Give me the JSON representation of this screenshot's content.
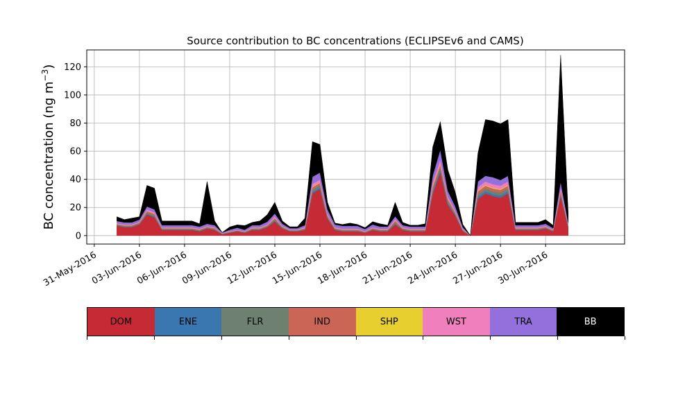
{
  "chart_data": {
    "type": "area",
    "title": "Source contribution to BC concentrations (ECLIPSEv6 and CAMS)",
    "ylabel": "BC concentration (ng m",
    "ylabel_sup": "−3",
    "ylabel_close": ")",
    "xlabel": "",
    "ylim": [
      -6,
      132
    ],
    "yticks": [
      0,
      20,
      40,
      60,
      80,
      100,
      120
    ],
    "xlim": [
      "2016-05-30T12:00",
      "2016-07-05T06:00"
    ],
    "xticks": [
      "31-May-2016",
      "03-Jun-2016",
      "06-Jun-2016",
      "09-Jun-2016",
      "12-Jun-2016",
      "15-Jun-2016",
      "18-Jun-2016",
      "21-Jun-2016",
      "24-Jun-2016",
      "27-Jun-2016",
      "30-Jun-2016"
    ],
    "grid": true,
    "stacked": true,
    "series_order": [
      "DOM",
      "ENE",
      "FLR",
      "IND",
      "SHP",
      "WST",
      "TRA",
      "BB"
    ],
    "x": [
      "2016-06-01T12:00",
      "2016-06-02T00:00",
      "2016-06-02T12:00",
      "2016-06-03T00:00",
      "2016-06-03T12:00",
      "2016-06-04T00:00",
      "2016-06-04T12:00",
      "2016-06-05T00:00",
      "2016-06-05T12:00",
      "2016-06-06T00:00",
      "2016-06-06T12:00",
      "2016-06-07T00:00",
      "2016-06-07T12:00",
      "2016-06-08T00:00",
      "2016-06-08T12:00",
      "2016-06-09T00:00",
      "2016-06-09T12:00",
      "2016-06-10T00:00",
      "2016-06-10T12:00",
      "2016-06-11T00:00",
      "2016-06-11T12:00",
      "2016-06-12T00:00",
      "2016-06-12T12:00",
      "2016-06-13T00:00",
      "2016-06-13T12:00",
      "2016-06-14T00:00",
      "2016-06-14T12:00",
      "2016-06-15T00:00",
      "2016-06-15T12:00",
      "2016-06-16T00:00",
      "2016-06-16T12:00",
      "2016-06-17T00:00",
      "2016-06-17T12:00",
      "2016-06-18T00:00",
      "2016-06-18T12:00",
      "2016-06-19T00:00",
      "2016-06-19T12:00",
      "2016-06-20T00:00",
      "2016-06-20T12:00",
      "2016-06-21T00:00",
      "2016-06-21T12:00",
      "2016-06-22T00:00",
      "2016-06-22T12:00",
      "2016-06-23T00:00",
      "2016-06-23T12:00",
      "2016-06-24T00:00",
      "2016-06-24T12:00",
      "2016-06-25T00:00",
      "2016-06-25T12:00",
      "2016-06-26T00:00",
      "2016-06-26T12:00",
      "2016-06-27T00:00",
      "2016-06-27T12:00",
      "2016-06-28T00:00",
      "2016-06-28T12:00",
      "2016-06-29T00:00",
      "2016-06-29T12:00",
      "2016-06-30T00:00",
      "2016-06-30T12:00",
      "2016-07-01T00:00",
      "2016-07-01T12:00"
    ],
    "series": [
      {
        "name": "DOM",
        "color": "#c52a35",
        "values": [
          7,
          6,
          6,
          8,
          15,
          13,
          4,
          4,
          4,
          4,
          4,
          3,
          5,
          4,
          1,
          2,
          3,
          2,
          4,
          4,
          6,
          10,
          5,
          3,
          3,
          4,
          30,
          33,
          12,
          4,
          3,
          3,
          3,
          2,
          4,
          3,
          3,
          8,
          4,
          3,
          3,
          3,
          30,
          45,
          22,
          14,
          3,
          0,
          26,
          30,
          28,
          27,
          30,
          4,
          4,
          4,
          4,
          5,
          3,
          28,
          6
        ]
      },
      {
        "name": "ENE",
        "color": "#3a76b0",
        "values": [
          0.3,
          0.3,
          0.3,
          0.3,
          0.5,
          0.5,
          0.3,
          0.3,
          0.3,
          0.3,
          0.3,
          0.3,
          0.3,
          0.3,
          0.1,
          0.2,
          0.2,
          0.2,
          0.3,
          0.3,
          0.3,
          0.5,
          0.3,
          0.3,
          0.3,
          0.3,
          1,
          1,
          0.5,
          0.3,
          0.3,
          0.3,
          0.3,
          0.2,
          0.3,
          0.3,
          0.3,
          0.5,
          0.3,
          0.3,
          0.3,
          0.3,
          1,
          1.5,
          1,
          0.5,
          0.3,
          0,
          1.5,
          1.5,
          1.5,
          1.5,
          1.5,
          0.3,
          0.3,
          0.3,
          0.3,
          0.3,
          0.3,
          1,
          0.3
        ]
      },
      {
        "name": "FLR",
        "color": "#6e8170",
        "values": [
          0.5,
          0.5,
          0.5,
          0.5,
          1,
          1,
          0.5,
          0.5,
          0.5,
          0.5,
          0.5,
          0.5,
          0.5,
          0.5,
          0.2,
          0.3,
          0.3,
          0.3,
          0.5,
          0.5,
          0.5,
          1,
          0.5,
          0.3,
          0.3,
          0.5,
          2,
          2,
          1,
          0.5,
          0.5,
          0.5,
          0.5,
          0.3,
          0.5,
          0.5,
          0.5,
          1,
          0.5,
          0.5,
          0.5,
          0.5,
          2,
          2,
          1.5,
          1,
          0.5,
          0,
          2,
          2,
          2,
          2,
          2,
          0.5,
          0.5,
          0.5,
          0.5,
          0.5,
          0.3,
          1.5,
          0.5
        ]
      },
      {
        "name": "IND",
        "color": "#cb6657",
        "values": [
          0.5,
          0.5,
          0.5,
          0.5,
          1,
          1,
          0.5,
          0.5,
          0.5,
          0.5,
          0.5,
          0.5,
          0.5,
          0.5,
          0.2,
          0.3,
          0.3,
          0.3,
          0.5,
          0.5,
          0.5,
          1,
          0.5,
          0.3,
          0.3,
          0.5,
          1.5,
          1.5,
          1,
          0.5,
          0.5,
          0.5,
          0.5,
          0.3,
          0.5,
          0.5,
          0.5,
          1,
          0.5,
          0.5,
          0.5,
          0.5,
          2,
          2,
          1.5,
          1,
          0.5,
          0,
          2,
          2,
          2,
          2,
          2,
          0.5,
          0.5,
          0.5,
          0.5,
          0.5,
          0.3,
          1.5,
          0.5
        ]
      },
      {
        "name": "SHP",
        "color": "#e6cf2f",
        "values": [
          0.1,
          0.1,
          0.1,
          0.1,
          0.2,
          0.2,
          0.1,
          0.1,
          0.1,
          0.1,
          0.1,
          0.1,
          0.1,
          0.1,
          0.05,
          0.05,
          0.05,
          0.05,
          0.1,
          0.1,
          0.1,
          0.2,
          0.1,
          0.1,
          0.1,
          0.1,
          0.3,
          0.3,
          0.2,
          0.1,
          0.1,
          0.1,
          0.1,
          0.05,
          0.1,
          0.1,
          0.1,
          0.2,
          0.1,
          0.1,
          0.1,
          0.1,
          0.5,
          0.5,
          0.3,
          0.2,
          0.1,
          0,
          0.5,
          0.5,
          0.5,
          0.5,
          0.5,
          0.1,
          0.1,
          0.1,
          0.1,
          0.1,
          0.1,
          0.3,
          0.1
        ]
      },
      {
        "name": "WST",
        "color": "#f07fbd",
        "values": [
          0.5,
          0.5,
          0.5,
          0.5,
          1,
          1,
          0.5,
          0.5,
          0.5,
          0.5,
          0.5,
          0.5,
          0.5,
          0.5,
          0.2,
          0.3,
          0.3,
          0.3,
          0.5,
          0.5,
          0.5,
          1,
          0.5,
          0.3,
          0.3,
          0.5,
          2,
          2,
          1,
          0.5,
          0.5,
          0.5,
          0.5,
          0.3,
          0.5,
          0.5,
          0.5,
          1,
          0.5,
          0.5,
          0.5,
          0.5,
          2.5,
          3,
          1.5,
          1,
          0.5,
          0,
          2.5,
          2.5,
          2.5,
          2.5,
          2.5,
          0.5,
          0.5,
          0.5,
          0.5,
          0.5,
          0.3,
          2,
          0.5
        ]
      },
      {
        "name": "TRA",
        "color": "#9370db",
        "values": [
          1.5,
          1.5,
          1.5,
          1.5,
          2,
          2,
          1.5,
          1.5,
          1.5,
          1.5,
          1.5,
          1.5,
          1.5,
          1.5,
          0.5,
          1,
          1.5,
          1,
          1.5,
          1.5,
          2,
          2,
          1.5,
          1,
          1,
          1.5,
          5,
          5,
          3,
          2,
          2,
          2,
          2,
          1.5,
          2,
          1.5,
          1.5,
          2,
          1.5,
          1.5,
          1.5,
          1.5,
          5,
          7,
          4,
          3,
          1,
          0,
          4,
          4,
          5,
          4,
          4,
          1.5,
          1.5,
          1.5,
          1.5,
          1.5,
          1,
          4,
          1.5
        ]
      },
      {
        "name": "BB",
        "color": "#000000",
        "values": [
          3,
          2,
          3,
          2,
          15,
          15,
          3,
          3,
          3,
          3,
          3,
          2,
          30,
          3,
          0,
          2,
          2,
          3,
          2,
          3,
          5,
          8,
          2,
          1,
          1,
          5,
          25,
          20,
          5,
          1,
          1,
          2,
          1,
          1,
          2,
          2,
          1,
          10,
          2,
          1,
          1,
          2,
          20,
          20,
          15,
          10,
          2,
          0,
          20,
          40,
          40,
          40,
          40,
          2,
          2,
          2,
          2,
          3,
          2,
          90,
          7
        ]
      }
    ]
  }
}
